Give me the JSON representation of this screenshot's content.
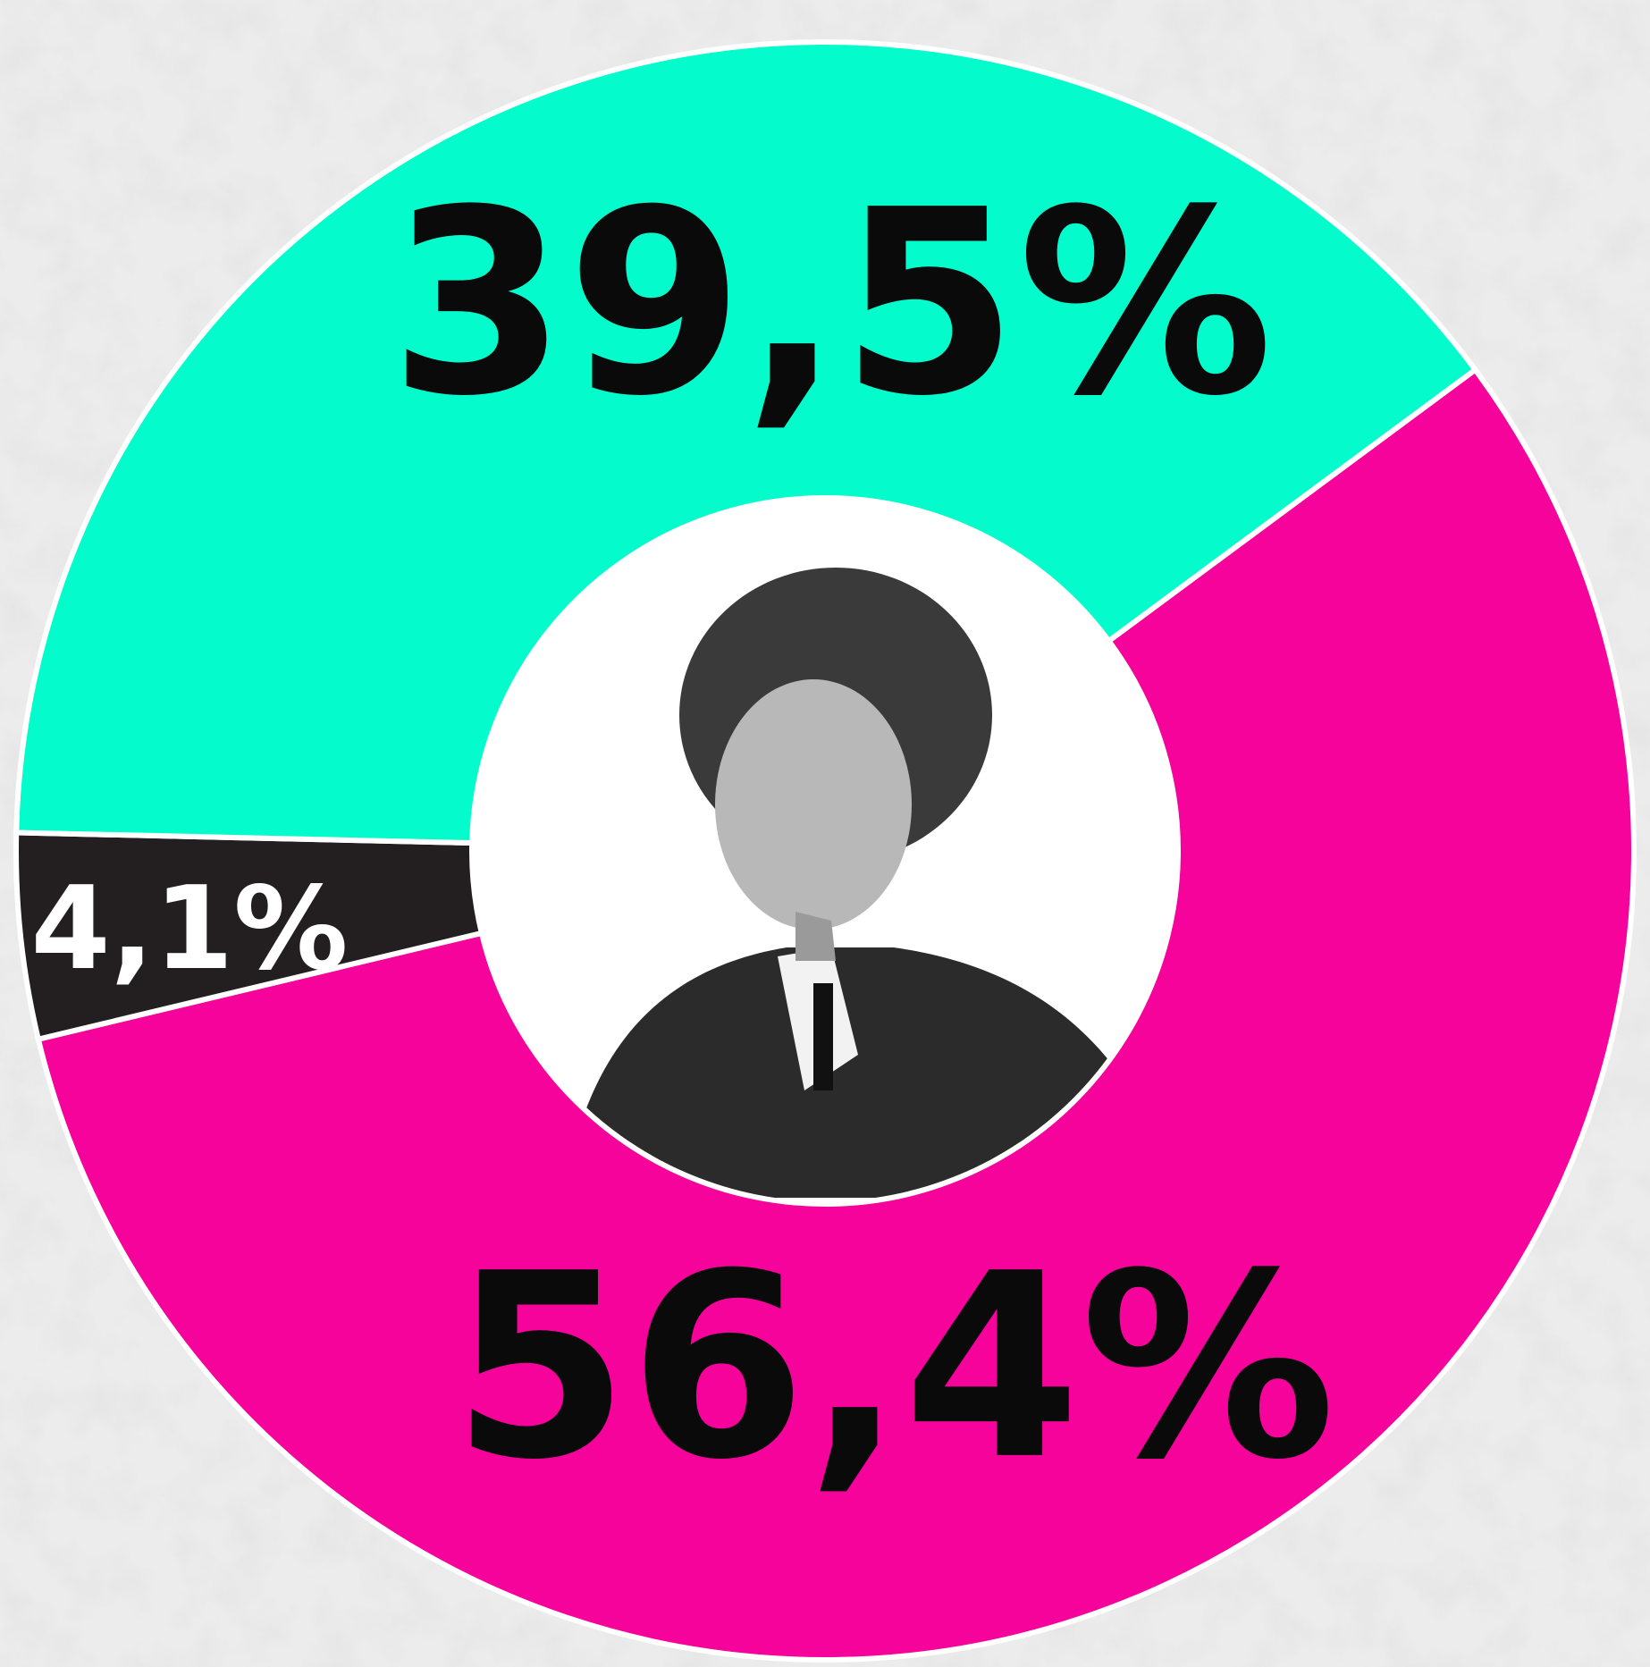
{
  "chart_data": {
    "type": "pie",
    "values": [
      56.4,
      4.1,
      39.5
    ],
    "value_labels": [
      "56,4%",
      "4,1%",
      "39,5%"
    ],
    "colors": [
      "#f5039a",
      "#231f20",
      "#04fccc"
    ]
  }
}
